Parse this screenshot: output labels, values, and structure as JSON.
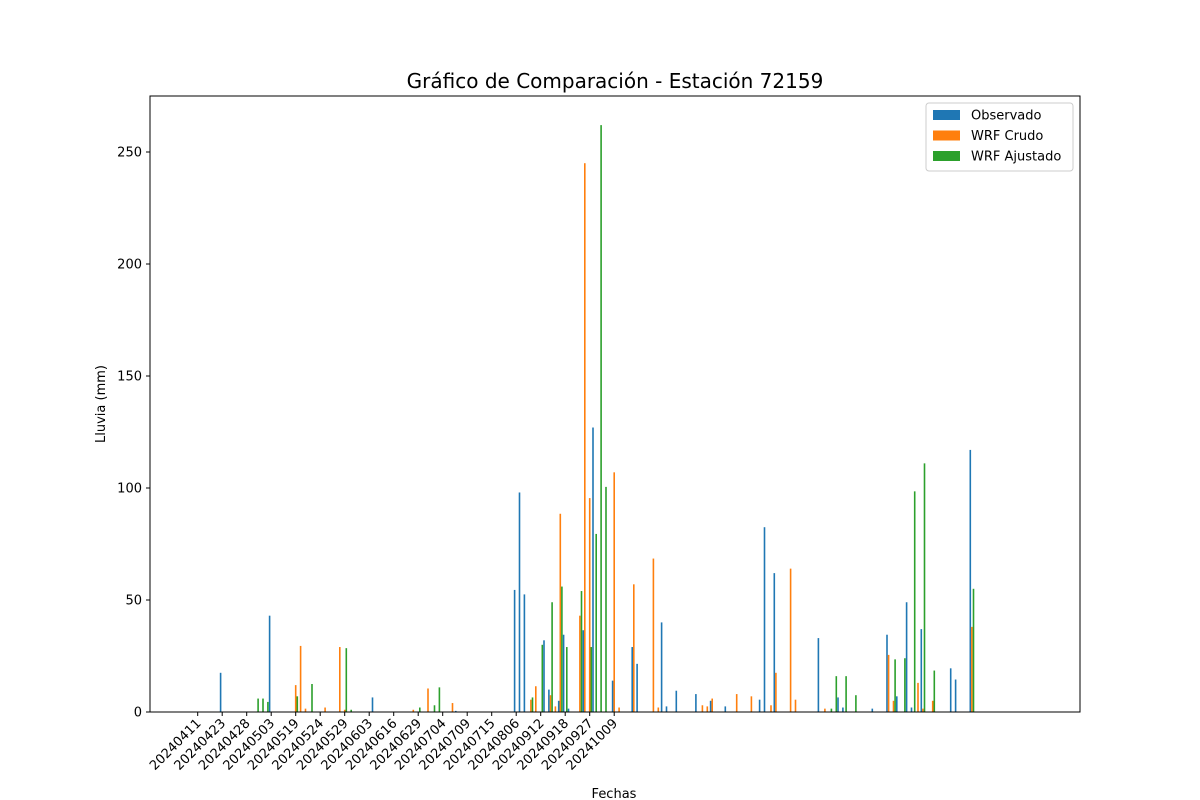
{
  "chart_data": {
    "type": "bar",
    "title": "Gráfico de Comparación - Estación 72159",
    "xlabel": "Fechas",
    "ylabel": "Lluvia (mm)",
    "ylim": [
      0,
      275
    ],
    "yticks": [
      0,
      50,
      100,
      150,
      200,
      250
    ],
    "xtick_labels": [
      "20240411",
      "20240423",
      "20240428",
      "20240503",
      "20240519",
      "20240524",
      "20240529",
      "20240603",
      "20240616",
      "20240629",
      "20240704",
      "20240709",
      "20240715",
      "20240806",
      "20240912",
      "20240918",
      "20240927",
      "20241009"
    ],
    "xtick_every": 5,
    "legend_position": "top-right",
    "grid": false,
    "series": [
      {
        "name": "Observado",
        "color": "#1f77b4",
        "values": [
          0,
          0,
          0,
          0,
          0,
          17.5,
          0,
          0,
          0,
          0,
          0,
          0,
          0,
          0,
          0,
          43,
          0,
          0,
          0,
          0,
          0,
          0,
          0,
          0,
          0,
          0,
          0,
          0,
          0,
          0,
          0,
          0,
          0,
          0,
          0,
          0,
          6.5,
          0,
          0,
          0,
          0,
          0,
          0,
          0,
          0,
          0,
          0,
          0,
          0,
          0,
          0,
          0,
          0,
          0.5,
          0,
          0,
          0,
          0,
          0,
          0,
          0,
          0,
          0,
          0,
          0,
          54.5,
          98,
          52.5,
          0,
          0,
          0,
          32,
          10,
          0,
          5,
          34.5,
          1.5,
          0,
          0,
          36.5,
          0,
          127,
          0,
          0,
          0,
          14,
          0,
          0,
          0,
          29,
          21.5,
          0,
          0,
          0,
          0,
          40,
          2.5,
          0,
          9.5,
          0,
          0,
          0,
          8,
          0,
          0,
          5,
          0,
          0,
          2.5,
          0,
          0,
          0,
          0,
          0,
          0,
          5.5,
          82.5,
          0,
          62,
          0,
          0,
          0,
          0,
          0,
          0,
          0,
          0,
          33,
          0,
          0,
          0,
          6.5,
          2,
          0,
          0,
          0,
          0,
          0,
          1.5,
          0,
          0,
          34.5,
          0,
          7,
          0,
          49,
          2,
          0,
          37,
          0,
          0,
          0,
          0,
          0,
          19.5,
          14.5,
          0,
          0,
          117,
          0,
          0,
          0
        ]
      },
      {
        "name": "WRF Crudo",
        "color": "#ff7f0e",
        "values": [
          0,
          0,
          0,
          0,
          0,
          0,
          0,
          0,
          0,
          0,
          0,
          0,
          0,
          0,
          0,
          0,
          0,
          0,
          0,
          0,
          12,
          29.5,
          1.5,
          0,
          0,
          0,
          2,
          0,
          0,
          29,
          1,
          0,
          0,
          0,
          0,
          0,
          0,
          0,
          0,
          0,
          0,
          0,
          0,
          0,
          1,
          0,
          0,
          10.5,
          0,
          0,
          0,
          0,
          4,
          0,
          0,
          0,
          0,
          0,
          0,
          0,
          0,
          0,
          0,
          0,
          0,
          0,
          0,
          0,
          5.5,
          11.5,
          0,
          0,
          7.5,
          2.5,
          88.5,
          0,
          0,
          0,
          43,
          245,
          95.5,
          0,
          0,
          0,
          0,
          107,
          2,
          0,
          0,
          57,
          0,
          0,
          0,
          68.5,
          2,
          0,
          0,
          0,
          0,
          0,
          0,
          0,
          0,
          3,
          2.5,
          6,
          0,
          0,
          0,
          0,
          8,
          0,
          0,
          7,
          0,
          0,
          0,
          3,
          17.5,
          0,
          0,
          64,
          5.5,
          0,
          0,
          0,
          0,
          0,
          1.5,
          0,
          0,
          0,
          0,
          0,
          0,
          0,
          0,
          0,
          0,
          0,
          0,
          25.5,
          5,
          0,
          0,
          0,
          0,
          13,
          1.5,
          0,
          5,
          0,
          0,
          0,
          0,
          0,
          0,
          0,
          38,
          0,
          0,
          0
        ]
      },
      {
        "name": "WRF Ajustado",
        "color": "#2ca02c",
        "values": [
          0,
          0,
          0,
          0,
          0,
          0,
          0,
          0,
          0,
          0,
          0,
          0,
          6,
          6,
          4.5,
          0,
          0,
          0,
          0,
          0,
          7,
          0,
          0,
          12.5,
          0,
          0,
          0,
          0,
          0,
          0,
          28.5,
          1,
          0,
          0,
          0,
          0,
          0,
          0,
          0,
          0,
          0,
          0,
          0,
          0,
          0,
          2,
          0,
          0,
          3,
          11,
          0,
          0,
          0,
          0,
          0,
          0,
          0,
          0,
          0,
          0,
          0,
          0,
          0,
          0,
          0,
          0,
          0,
          0,
          6.5,
          0,
          30,
          0,
          49,
          0,
          56,
          29,
          0,
          0,
          54,
          0,
          29,
          79.5,
          262,
          100.5,
          0,
          0,
          0,
          0,
          0,
          0,
          0,
          0,
          0,
          0,
          0,
          0,
          0,
          0,
          0,
          0,
          0,
          0,
          0,
          0,
          0,
          0,
          0,
          0,
          0,
          0,
          0,
          0,
          0,
          0,
          0,
          0,
          0,
          0,
          0,
          0,
          0,
          0,
          0,
          0,
          0,
          0,
          0,
          0,
          0,
          1.5,
          16,
          0,
          16,
          0,
          7.5,
          0,
          0,
          0,
          0,
          0,
          0,
          0,
          23.5,
          0,
          24,
          0,
          98.5,
          0,
          111,
          0,
          18.5,
          0,
          0,
          0,
          0,
          0,
          0,
          0,
          55,
          0,
          0,
          0
        ]
      }
    ]
  }
}
